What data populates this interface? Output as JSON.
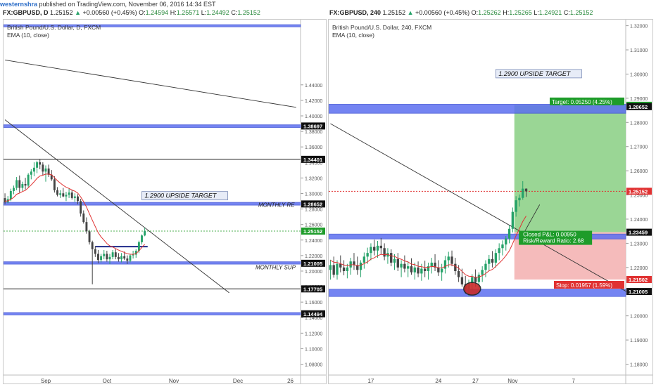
{
  "attribution": {
    "user": "westernshra",
    "text": "published on TradingView.com, November 06, 2016 14:34 EST"
  },
  "colors": {
    "candle_up": "#26a269",
    "candle_down": "#444444",
    "ema": "#e03131",
    "zone_fill": "#5c6ff0",
    "target_fill": "#8fd18a",
    "stop_fill": "#f4b4b4",
    "label_black": "#111111",
    "label_green": "#1e9c2a",
    "label_red": "#e03131"
  },
  "chart_data": [
    {
      "type": "candlestick",
      "header": {
        "symbol": "FX:GBPUSD, D",
        "price": "1.25152",
        "change": "+0.00560 (+0.45%)",
        "o_label": "O:",
        "o": "1.24594",
        "h_label": "H:",
        "h": "1.25571",
        "l_label": "L:",
        "l": "1.24492",
        "c_label": "C:",
        "c": "1.25152"
      },
      "title": "British Pound/U.S. Dollar, D, FXCM",
      "indicator": "EMA (10, close)",
      "ylim": [
        1.066,
        1.524
      ],
      "y_ticks": [
        "1.08000",
        "1.10000",
        "1.12000",
        "1.14000",
        "1.16000",
        "1.18000",
        "1.20000",
        "1.22000",
        "1.24000",
        "1.26000",
        "1.28000",
        "1.30000",
        "1.32000",
        "1.34000",
        "1.36000",
        "1.38000",
        "1.40000",
        "1.42000",
        "1.44000"
      ],
      "x_ticks": [
        {
          "label": "Sep",
          "index": 14
        },
        {
          "label": "Oct",
          "index": 35
        },
        {
          "label": "Nov",
          "index": 58
        },
        {
          "label": "Dec",
          "index": 80
        },
        {
          "label": "26",
          "index": 98
        }
      ],
      "n_slots": 102,
      "candles": [
        [
          1.294,
          1.3002,
          1.2862,
          1.2887
        ],
        [
          1.2887,
          1.2967,
          1.2873,
          1.2927
        ],
        [
          1.2927,
          1.3062,
          1.2902,
          1.3032
        ],
        [
          1.3032,
          1.3102,
          1.299,
          1.3072
        ],
        [
          1.3072,
          1.3212,
          1.3042,
          1.3172
        ],
        [
          1.3172,
          1.3232,
          1.3012,
          1.3072
        ],
        [
          1.3072,
          1.3152,
          1.3032,
          1.3122
        ],
        [
          1.3122,
          1.3202,
          1.3052,
          1.3102
        ],
        [
          1.3102,
          1.3262,
          1.3082,
          1.3242
        ],
        [
          1.3242,
          1.3312,
          1.3182,
          1.3282
        ],
        [
          1.3282,
          1.3402,
          1.3222,
          1.3332
        ],
        [
          1.3332,
          1.3422,
          1.3262,
          1.3402
        ],
        [
          1.3402,
          1.3446,
          1.3312,
          1.3372
        ],
        [
          1.3372,
          1.3402,
          1.3232,
          1.3282
        ],
        [
          1.3282,
          1.3362,
          1.3152,
          1.3322
        ],
        [
          1.3322,
          1.3372,
          1.3212,
          1.3242
        ],
        [
          1.3242,
          1.3302,
          1.3162,
          1.3182
        ],
        [
          1.3182,
          1.3222,
          1.3012,
          1.3042
        ],
        [
          1.3042,
          1.3082,
          1.2962,
          1.2982
        ],
        [
          1.2982,
          1.3042,
          1.2942,
          1.3002
        ],
        [
          1.3002,
          1.3072,
          1.2952,
          1.2962
        ],
        [
          1.2962,
          1.3022,
          1.2902,
          1.2982
        ],
        [
          1.2982,
          1.3062,
          1.2942,
          1.3012
        ],
        [
          1.3012,
          1.3042,
          1.2922,
          1.2942
        ],
        [
          1.2942,
          1.3002,
          1.2892,
          1.2962
        ],
        [
          1.2962,
          1.2992,
          1.2862,
          1.2902
        ],
        [
          1.2902,
          1.2932,
          1.2702,
          1.2742
        ],
        [
          1.2742,
          1.2782,
          1.2612,
          1.2632
        ],
        [
          1.2632,
          1.2692,
          1.2482,
          1.2512
        ],
        [
          1.2512,
          1.2532,
          1.2342,
          1.2372
        ],
        [
          1.2372,
          1.2392,
          1.183,
          1.2282
        ],
        [
          1.2282,
          1.2322,
          1.2182,
          1.2222
        ],
        [
          1.2222,
          1.2272,
          1.2102,
          1.2142
        ],
        [
          1.2142,
          1.2222,
          1.2112,
          1.2192
        ],
        [
          1.2192,
          1.2272,
          1.2152,
          1.2222
        ],
        [
          1.2222,
          1.2262,
          1.2122,
          1.2152
        ],
        [
          1.2152,
          1.2222,
          1.2092,
          1.2182
        ],
        [
          1.2182,
          1.2272,
          1.2152,
          1.2242
        ],
        [
          1.2242,
          1.2282,
          1.2152,
          1.2182
        ],
        [
          1.2182,
          1.2232,
          1.2122,
          1.2152
        ],
        [
          1.2152,
          1.2232,
          1.2112,
          1.2192
        ],
        [
          1.2192,
          1.2252,
          1.2142,
          1.2162
        ],
        [
          1.2162,
          1.2202,
          1.2092,
          1.2132
        ],
        [
          1.2132,
          1.2222,
          1.2112,
          1.2202
        ],
        [
          1.2202,
          1.2262,
          1.2162,
          1.2212
        ],
        [
          1.2212,
          1.2282,
          1.2172,
          1.2262
        ],
        [
          1.2262,
          1.2392,
          1.2232,
          1.2372
        ],
        [
          1.2372,
          1.2472,
          1.2342,
          1.2459
        ],
        [
          1.2459,
          1.2557,
          1.2449,
          1.2515
        ]
      ],
      "ema_values": [
        1.29,
        1.2905,
        1.2925,
        1.295,
        1.299,
        1.3005,
        1.3025,
        1.304,
        1.3075,
        1.311,
        1.315,
        1.3195,
        1.3225,
        1.3235,
        1.325,
        1.325,
        1.324,
        1.3205,
        1.3165,
        1.3135,
        1.3105,
        1.308,
        1.3065,
        1.3045,
        1.303,
        1.3005,
        1.2955,
        1.2895,
        1.2825,
        1.274,
        1.2655,
        1.2575,
        1.2495,
        1.244,
        1.24,
        1.2355,
        1.2325,
        1.231,
        1.229,
        1.227,
        1.2255,
        1.224,
        1.2222,
        1.2218,
        1.2216,
        1.2225,
        1.226,
        1.2305,
        1.2345
      ],
      "zones": [
        {
          "top": 1.5175,
          "bottom": 1.515,
          "color": "#4558d8"
        },
        {
          "top": 1.3885,
          "bottom": 1.385,
          "color": "#4558d8"
        },
        {
          "top": 1.2885,
          "bottom": 1.285,
          "color": "#4558d8"
        },
        {
          "top": 1.212,
          "bottom": 1.209,
          "color": "#4558d8"
        },
        {
          "top": 1.1465,
          "bottom": 1.1435,
          "color": "#4558d8"
        }
      ],
      "hlines": [
        {
          "value": 1.34401,
          "color": "#222222"
        },
        {
          "value": 1.17705,
          "color": "#222222"
        },
        {
          "value": 1.25152,
          "color": "#4caf50",
          "dash": true
        }
      ],
      "trendlines": [
        {
          "x1": 0,
          "y1": 1.472,
          "x2": 100,
          "y2": 1.411
        },
        {
          "x1": 0,
          "y1": 1.395,
          "x2": 77,
          "y2": 1.172
        }
      ],
      "box_line": {
        "x1": 31,
        "x2": 49,
        "value": 1.2315
      },
      "target_text": "1.2900 UPSIDE TARGET",
      "target_value": 1.2935,
      "target_x": 47,
      "monthly_res": "MONTHLY RE",
      "monthly_sup": "MONTHLY SUP",
      "price_labels": [
        {
          "text": "1.38697",
          "value": 1.38697,
          "kind": "black"
        },
        {
          "text": "1.34401",
          "value": 1.34401,
          "kind": "black"
        },
        {
          "text": "1.28652",
          "value": 1.28652,
          "kind": "black"
        },
        {
          "text": "1.25152",
          "value": 1.25152,
          "kind": "green"
        },
        {
          "text": "1.21005",
          "value": 1.21005,
          "kind": "black"
        },
        {
          "text": "1.17705",
          "value": 1.17705,
          "kind": "black"
        },
        {
          "text": "1.14494",
          "value": 1.14494,
          "kind": "black"
        }
      ]
    },
    {
      "type": "candlestick",
      "header": {
        "symbol": "FX:GBPUSD, 240",
        "price": "1.25152",
        "change": "+0.00560 (+0.45%)",
        "o_label": "O:",
        "o": "1.25262",
        "h_label": "H:",
        "h": "1.25265",
        "l_label": "L:",
        "l": "1.24921",
        "c_label": "C:",
        "c": "1.25152"
      },
      "title": "British Pound/U.S. Dollar, 240, FXCM",
      "indicator": "EMA (10, close)",
      "ylim": [
        1.1755,
        1.3225
      ],
      "y_ticks": [
        "1.18000",
        "1.19000",
        "1.20000",
        "1.21000",
        "1.22000",
        "1.23000",
        "1.24000",
        "1.25000",
        "1.26000",
        "1.27000",
        "1.28000",
        "1.29000",
        "1.30000",
        "1.31000",
        "1.32000"
      ],
      "x_ticks": [
        {
          "label": "17",
          "index": 12
        },
        {
          "label": "24",
          "index": 32
        },
        {
          "label": "27",
          "index": 43
        },
        {
          "label": "Nov",
          "index": 54
        },
        {
          "label": "7",
          "index": 72
        }
      ],
      "n_slots": 88,
      "candles": [
        [
          1.219,
          1.2232,
          1.215,
          1.221
        ],
        [
          1.221,
          1.2245,
          1.2158,
          1.217
        ],
        [
          1.217,
          1.223,
          1.215,
          1.2215
        ],
        [
          1.2215,
          1.225,
          1.218,
          1.22
        ],
        [
          1.22,
          1.223,
          1.2168,
          1.2185
        ],
        [
          1.2185,
          1.2215,
          1.2155,
          1.22
        ],
        [
          1.22,
          1.224,
          1.217,
          1.2225
        ],
        [
          1.2225,
          1.226,
          1.219,
          1.221
        ],
        [
          1.221,
          1.2245,
          1.217,
          1.219
        ],
        [
          1.219,
          1.223,
          1.216,
          1.222
        ],
        [
          1.222,
          1.2262,
          1.2195,
          1.2245
        ],
        [
          1.2245,
          1.2282,
          1.2215,
          1.226
        ],
        [
          1.226,
          1.23,
          1.223,
          1.2285
        ],
        [
          1.2285,
          1.2315,
          1.225,
          1.227
        ],
        [
          1.227,
          1.231,
          1.224,
          1.229
        ],
        [
          1.229,
          1.2322,
          1.2255,
          1.228
        ],
        [
          1.228,
          1.23,
          1.223,
          1.2245
        ],
        [
          1.2245,
          1.228,
          1.2215,
          1.226
        ],
        [
          1.226,
          1.2275,
          1.2205,
          1.222
        ],
        [
          1.222,
          1.2255,
          1.219,
          1.2235
        ],
        [
          1.2235,
          1.226,
          1.2185,
          1.22
        ],
        [
          1.22,
          1.223,
          1.216,
          1.2215
        ],
        [
          1.2215,
          1.225,
          1.218,
          1.2195
        ],
        [
          1.2195,
          1.2225,
          1.216,
          1.2205
        ],
        [
          1.2205,
          1.2238,
          1.217,
          1.218
        ],
        [
          1.218,
          1.222,
          1.215,
          1.22
        ],
        [
          1.22,
          1.2225,
          1.216,
          1.2175
        ],
        [
          1.2175,
          1.2215,
          1.2145,
          1.2195
        ],
        [
          1.2195,
          1.2228,
          1.216,
          1.2185
        ],
        [
          1.2185,
          1.222,
          1.215,
          1.2205
        ],
        [
          1.2205,
          1.224,
          1.2175,
          1.222
        ],
        [
          1.222,
          1.2255,
          1.2185,
          1.22
        ],
        [
          1.22,
          1.223,
          1.2165,
          1.218
        ],
        [
          1.218,
          1.2215,
          1.2145,
          1.2195
        ],
        [
          1.2195,
          1.2248,
          1.2175,
          1.223
        ],
        [
          1.223,
          1.2265,
          1.22,
          1.2245
        ],
        [
          1.2245,
          1.227,
          1.2205,
          1.2215
        ],
        [
          1.2215,
          1.224,
          1.217,
          1.2185
        ],
        [
          1.2185,
          1.221,
          1.214,
          1.216
        ],
        [
          1.216,
          1.2195,
          1.212,
          1.213
        ],
        [
          1.213,
          1.2165,
          1.2092,
          1.211
        ],
        [
          1.211,
          1.215,
          1.2082,
          1.2135
        ],
        [
          1.2135,
          1.2172,
          1.2105,
          1.216
        ],
        [
          1.216,
          1.2192,
          1.212,
          1.214
        ],
        [
          1.214,
          1.218,
          1.211,
          1.217
        ],
        [
          1.217,
          1.2205,
          1.214,
          1.219
        ],
        [
          1.219,
          1.223,
          1.216,
          1.2215
        ],
        [
          1.2215,
          1.2252,
          1.2185,
          1.2235
        ],
        [
          1.2235,
          1.2268,
          1.22,
          1.222
        ],
        [
          1.222,
          1.2275,
          1.22,
          1.226
        ],
        [
          1.226,
          1.23,
          1.223,
          1.228
        ],
        [
          1.228,
          1.2312,
          1.225,
          1.2295
        ],
        [
          1.2295,
          1.233,
          1.227,
          1.232
        ],
        [
          1.232,
          1.2375,
          1.23,
          1.236
        ],
        [
          1.236,
          1.2448,
          1.2345,
          1.243
        ],
        [
          1.243,
          1.2495,
          1.241,
          1.2478
        ],
        [
          1.2478,
          1.2502,
          1.2452,
          1.2488
        ],
        [
          1.2488,
          1.2557,
          1.248,
          1.2526
        ],
        [
          1.2526,
          1.2527,
          1.2492,
          1.2515
        ]
      ],
      "ema_values": [
        1.223,
        1.2222,
        1.222,
        1.2216,
        1.221,
        1.2208,
        1.2211,
        1.2211,
        1.2207,
        1.2209,
        1.2216,
        1.2223,
        1.2234,
        1.224,
        1.2249,
        1.2254,
        1.2253,
        1.2254,
        1.2248,
        1.2246,
        1.2238,
        1.2234,
        1.2227,
        1.2223,
        1.2214,
        1.2212,
        1.2205,
        1.2203,
        1.22,
        1.2201,
        1.2204,
        1.2203,
        1.2199,
        1.2198,
        1.2204,
        1.2211,
        1.2211,
        1.2206,
        1.2197,
        1.2184,
        1.217,
        1.2164,
        1.2163,
        1.2159,
        1.2161,
        1.2166,
        1.2175,
        1.2186,
        1.2192,
        1.2204,
        1.2218,
        1.2232,
        1.2249,
        1.2269,
        1.2299,
        1.2331,
        1.236,
        1.239,
        1.2413
      ],
      "zones": [
        {
          "top": 1.2875,
          "bottom": 1.2838,
          "color": "#4558d8"
        },
        {
          "top": 1.2338,
          "bottom": 1.2318,
          "color": "#4558d8"
        },
        {
          "top": 1.211,
          "bottom": 1.208,
          "color": "#4558d8"
        }
      ],
      "hlines": [
        {
          "value": 1.25152,
          "color": "#e03131",
          "dash": true
        }
      ],
      "trendlines": [
        {
          "x1": 0,
          "y1": 1.2795,
          "x2": 88,
          "y2": 1.2102
        },
        {
          "x1": 56,
          "y1": 1.231,
          "x2": 62,
          "y2": 1.246
        }
      ],
      "position": {
        "x1": 55,
        "x2": 88,
        "entry": 1.23459,
        "target": 1.28709,
        "stop": 1.21502,
        "target_label": "Target: 0.05250 (4.25%)",
        "stop_label": "Stop: 0.01957 (1.59%)",
        "pnl_label": "Closed P&L: 0.00950",
        "rr_label": "Risk/Reward Ratio: 2.68"
      },
      "ellipse": {
        "x": 42,
        "value": 1.2112
      },
      "target_text": "1.2900 UPSIDE TARGET",
      "target_value": 1.299,
      "target_x": 49,
      "price_labels": [
        {
          "text": "1.28709",
          "value": 1.28709,
          "kind": "green"
        },
        {
          "text": "1.28652",
          "value": 1.28652,
          "kind": "black"
        },
        {
          "text": "1.25152",
          "value": 1.25152,
          "kind": "red"
        },
        {
          "text": "1.23459",
          "value": 1.23459,
          "kind": "black"
        },
        {
          "text": "1.21502",
          "value": 1.21502,
          "kind": "red"
        },
        {
          "text": "1.21005",
          "value": 1.21005,
          "kind": "black"
        }
      ]
    }
  ]
}
